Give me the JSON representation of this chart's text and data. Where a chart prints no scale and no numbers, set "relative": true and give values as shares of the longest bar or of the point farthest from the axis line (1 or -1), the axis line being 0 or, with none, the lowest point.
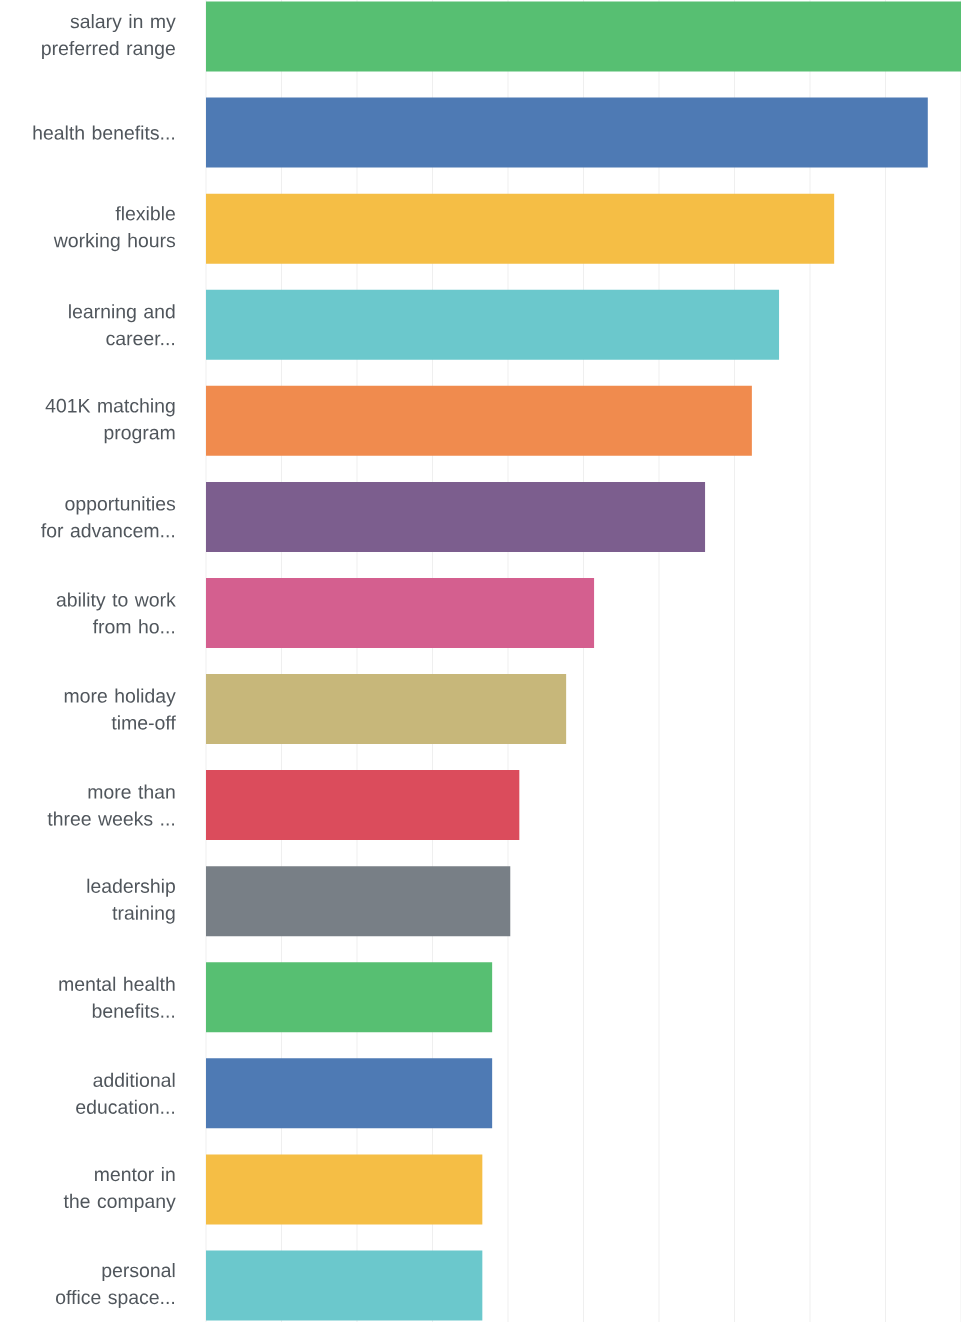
{
  "chart_data": {
    "type": "bar",
    "orientation": "horizontal",
    "relative": true,
    "grid": "x",
    "categories": [
      "salary in my preferred range",
      "health benefits...",
      "flexible working hours",
      "learning and career...",
      "401K matching program",
      "opportunities for advancem...",
      "ability to work from ho...",
      "more holiday time-off",
      "more than three weeks ...",
      "leadership training",
      "mental health benefits...",
      "additional education...",
      "mentor in the company",
      "personal office space..."
    ],
    "values": [
      1,
      0.956,
      0.832,
      0.759,
      0.723,
      0.661,
      0.514,
      0.477,
      0.415,
      0.403,
      0.379,
      0.379,
      0.366,
      0.366
    ],
    "colors": [
      "#57bf72",
      "#4e7ab4",
      "#f5be45",
      "#6bc8cc",
      "#f08b4e",
      "#7c5e8e",
      "#d45f8f",
      "#c7b77a",
      "#db4c5c",
      "#787f86",
      "#57bf72",
      "#4e7ab4",
      "#f5be45",
      "#6bc8cc"
    ]
  }
}
